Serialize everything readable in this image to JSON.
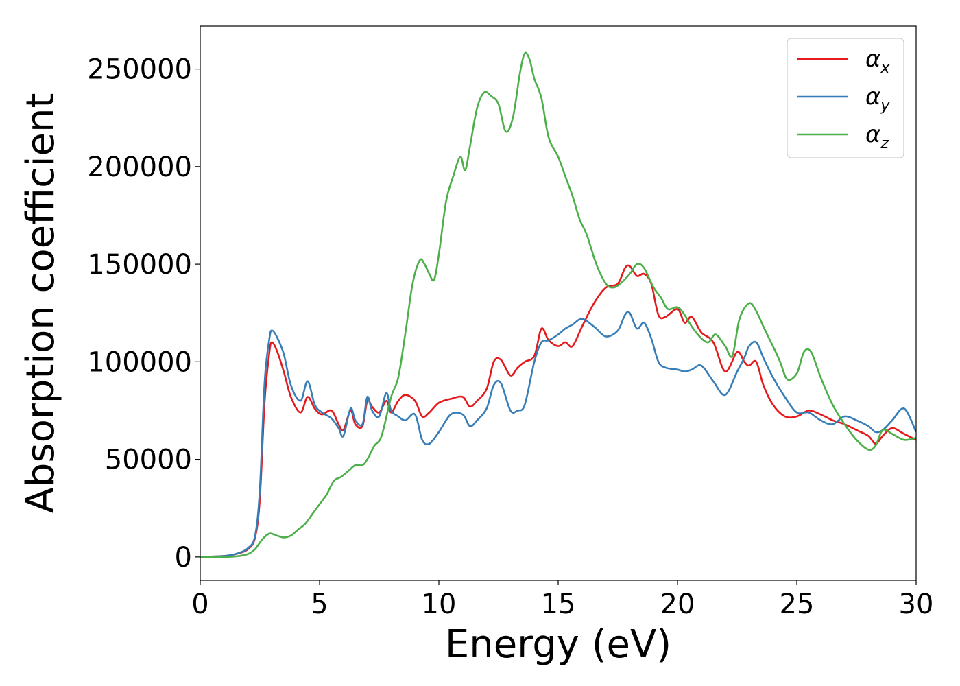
{
  "chart_data": {
    "type": "line",
    "xlabel": "Energy (eV)",
    "ylabel": "Absorption coefficient",
    "xlim": [
      0,
      30
    ],
    "ylim": [
      -12000,
      272000
    ],
    "xticks": [
      0,
      5,
      10,
      15,
      20,
      25,
      30
    ],
    "xtick_labels": [
      "0",
      "5",
      "10",
      "15",
      "20",
      "25",
      "30"
    ],
    "yticks": [
      0,
      50000,
      100000,
      150000,
      200000,
      250000
    ],
    "ytick_labels": [
      "0",
      "50000",
      "100000",
      "150000",
      "200000",
      "250000"
    ],
    "grid": false,
    "legend_position": "top-right",
    "series": [
      {
        "name": "αx",
        "legend_base": "α",
        "legend_sub": "x",
        "color": "#e41a1c",
        "x": [
          0,
          1,
          1.5,
          2,
          2.3,
          2.5,
          2.7,
          2.9,
          3.0,
          3.2,
          3.5,
          3.8,
          4.2,
          4.5,
          4.8,
          5.1,
          5.5,
          5.8,
          6.0,
          6.3,
          6.5,
          6.8,
          7.0,
          7.2,
          7.5,
          7.8,
          8.0,
          8.3,
          8.6,
          9.0,
          9.3,
          9.6,
          10.0,
          10.5,
          11.0,
          11.3,
          11.6,
          12.0,
          12.3,
          12.6,
          13.0,
          13.3,
          13.6,
          14.0,
          14.3,
          14.6,
          15.0,
          15.3,
          15.6,
          16.0,
          16.5,
          17.0,
          17.5,
          17.8,
          18.0,
          18.3,
          18.6,
          18.9,
          19.2,
          19.5,
          20.0,
          20.3,
          20.6,
          21.0,
          21.5,
          22.0,
          22.5,
          22.8,
          23.0,
          23.3,
          23.6,
          24.0,
          24.5,
          25.0,
          25.5,
          26.0,
          26.5,
          27.0,
          27.5,
          28.0,
          28.3,
          28.6,
          29.0,
          29.5,
          30.0
        ],
        "y": [
          0,
          500,
          1500,
          4000,
          10000,
          30000,
          80000,
          105000,
          110000,
          106000,
          95000,
          82000,
          74000,
          82000,
          76000,
          73000,
          75000,
          68000,
          65000,
          75000,
          68000,
          67000,
          80000,
          77000,
          74000,
          80000,
          74000,
          80000,
          83000,
          80000,
          72000,
          74000,
          79000,
          81000,
          82000,
          77000,
          80000,
          86000,
          100000,
          101000,
          93000,
          97000,
          100000,
          103000,
          117000,
          111000,
          108000,
          110000,
          108000,
          118000,
          130000,
          138000,
          140000,
          148000,
          149000,
          144000,
          145000,
          140000,
          124000,
          123000,
          127000,
          120000,
          123000,
          115000,
          110000,
          95000,
          105000,
          100000,
          98000,
          100000,
          88000,
          78000,
          72000,
          72000,
          75000,
          73000,
          70000,
          68000,
          65000,
          62000,
          58000,
          62000,
          66000,
          63000,
          60000
        ]
      },
      {
        "name": "αy",
        "legend_base": "α",
        "legend_sub": "y",
        "color": "#377eb8",
        "x": [
          0,
          1,
          1.5,
          2,
          2.3,
          2.5,
          2.7,
          2.9,
          3.0,
          3.2,
          3.5,
          3.8,
          4.2,
          4.5,
          4.8,
          5.1,
          5.5,
          5.8,
          6.0,
          6.3,
          6.5,
          6.8,
          7.0,
          7.2,
          7.5,
          7.8,
          8.0,
          8.3,
          8.6,
          9.0,
          9.3,
          9.6,
          10.0,
          10.5,
          11.0,
          11.3,
          11.6,
          12.0,
          12.3,
          12.6,
          13.0,
          13.3,
          13.6,
          14.0,
          14.3,
          14.6,
          15.0,
          15.3,
          15.6,
          16.0,
          16.5,
          17.0,
          17.5,
          17.8,
          18.0,
          18.3,
          18.6,
          18.9,
          19.2,
          19.5,
          20.0,
          20.3,
          20.6,
          21.0,
          21.5,
          22.0,
          22.5,
          22.8,
          23.0,
          23.3,
          23.6,
          24.0,
          24.5,
          25.0,
          25.5,
          26.0,
          26.5,
          27.0,
          27.5,
          28.0,
          28.3,
          28.6,
          29.0,
          29.5,
          30.0
        ],
        "y": [
          0,
          500,
          1600,
          4500,
          11000,
          35000,
          90000,
          112000,
          116000,
          113000,
          104000,
          88000,
          80000,
          90000,
          78000,
          74000,
          71000,
          66000,
          62000,
          76000,
          70000,
          68000,
          82000,
          75000,
          72000,
          84000,
          75000,
          72000,
          70000,
          73000,
          60000,
          58000,
          64000,
          73000,
          73000,
          67000,
          70000,
          76000,
          88000,
          89000,
          75000,
          75000,
          78000,
          100000,
          110000,
          111000,
          114000,
          117000,
          119000,
          122000,
          118000,
          113000,
          116000,
          124000,
          125000,
          117000,
          120000,
          112000,
          100000,
          97000,
          96000,
          95000,
          96000,
          98000,
          90000,
          83000,
          95000,
          102000,
          108000,
          110000,
          102000,
          92000,
          82000,
          74000,
          74000,
          70000,
          68000,
          72000,
          70000,
          67000,
          64000,
          65000,
          70000,
          76000,
          64000
        ]
      },
      {
        "name": "αz",
        "legend_base": "α",
        "legend_sub": "z",
        "color": "#4daf4a",
        "x": [
          0,
          1,
          1.5,
          2,
          2.3,
          2.6,
          2.9,
          3.2,
          3.5,
          3.8,
          4.1,
          4.4,
          4.7,
          5.0,
          5.3,
          5.6,
          5.9,
          6.2,
          6.5,
          6.8,
          7.0,
          7.3,
          7.6,
          8.0,
          8.3,
          8.6,
          8.9,
          9.2,
          9.4,
          9.6,
          9.8,
          10.0,
          10.3,
          10.6,
          10.9,
          11.1,
          11.3,
          11.6,
          11.9,
          12.2,
          12.5,
          12.8,
          13.1,
          13.4,
          13.6,
          13.8,
          14.0,
          14.3,
          14.6,
          15.0,
          15.3,
          15.6,
          15.9,
          16.2,
          16.6,
          17.0,
          17.3,
          17.6,
          18.0,
          18.3,
          18.6,
          19.0,
          19.3,
          19.6,
          20.0,
          20.3,
          20.6,
          21.0,
          21.3,
          21.6,
          22.0,
          22.3,
          22.6,
          23.0,
          23.3,
          23.6,
          24.0,
          24.3,
          24.6,
          25.0,
          25.3,
          25.6,
          26.0,
          26.5,
          27.0,
          27.5,
          28.0,
          28.3,
          28.6,
          29.0,
          29.5,
          30.0
        ],
        "y": [
          0,
          0,
          300,
          1500,
          4000,
          9000,
          12000,
          11000,
          10000,
          11000,
          14000,
          17000,
          22000,
          27000,
          32000,
          39000,
          41000,
          44000,
          47000,
          47000,
          50000,
          57000,
          62000,
          82000,
          92000,
          115000,
          140000,
          152000,
          150000,
          145000,
          142000,
          155000,
          182000,
          195000,
          205000,
          198000,
          210000,
          230000,
          238000,
          236000,
          232000,
          218000,
          225000,
          248000,
          258000,
          255000,
          245000,
          235000,
          215000,
          205000,
          195000,
          185000,
          173000,
          165000,
          150000,
          140000,
          138000,
          140000,
          145000,
          150000,
          148000,
          138000,
          133000,
          127000,
          128000,
          124000,
          118000,
          112000,
          110000,
          114000,
          108000,
          103000,
          122000,
          130000,
          126000,
          118000,
          108000,
          100000,
          91000,
          94000,
          105000,
          105000,
          92000,
          78000,
          68000,
          60000,
          55000,
          57000,
          65000,
          63000,
          60000,
          61000
        ]
      }
    ]
  }
}
